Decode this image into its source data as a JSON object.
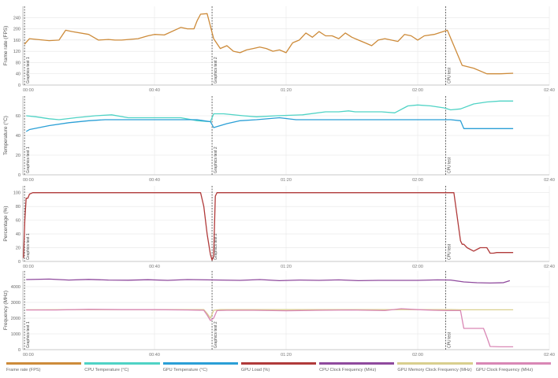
{
  "chart_data": [
    {
      "type": "line",
      "ylabel": "Frame rate (FPS)",
      "ylim": [
        0,
        280
      ],
      "yticks": [
        0,
        40,
        80,
        120,
        160,
        200,
        240
      ],
      "xlim": [
        0,
        160
      ],
      "xticks": [
        "00:00",
        "00:40",
        "01:20",
        "02:00",
        "02:40"
      ],
      "series": [
        {
          "name": "Frame rate (FPS)",
          "color": "#cd8b3a",
          "x": [
            0.5,
            2,
            8,
            11,
            13,
            15,
            20,
            23,
            26,
            28,
            30,
            35,
            38,
            40,
            43,
            48,
            50,
            52,
            53,
            54,
            56,
            58,
            60,
            62,
            64,
            66,
            68,
            70,
            72,
            74,
            76,
            78,
            80,
            82,
            84,
            86,
            88,
            90,
            92,
            94,
            96,
            98,
            100,
            102,
            104,
            106,
            108,
            110,
            112,
            114,
            116,
            118,
            120,
            122,
            125,
            129,
            133.5,
            137,
            141,
            145,
            149
          ],
          "y": [
            145,
            165,
            158,
            160,
            195,
            190,
            180,
            160,
            162,
            160,
            160,
            165,
            175,
            180,
            178,
            205,
            200,
            200,
            230,
            252,
            254,
            165,
            130,
            140,
            120,
            115,
            125,
            130,
            135,
            130,
            120,
            125,
            115,
            150,
            160,
            185,
            170,
            190,
            175,
            175,
            165,
            185,
            170,
            160,
            150,
            140,
            160,
            165,
            160,
            155,
            180,
            175,
            160,
            175,
            180,
            195,
            70,
            60,
            40,
            40,
            42
          ]
        }
      ],
      "markers": [
        "Graphics test 1",
        "Graphics test 2",
        "CPU test"
      ]
    },
    {
      "type": "line",
      "ylabel": "Temperature (°C)",
      "ylim": [
        0,
        80
      ],
      "yticks": [
        0,
        20,
        40,
        60
      ],
      "xlim": [
        0,
        160
      ],
      "xticks": [
        "00:00",
        "00:40",
        "01:20",
        "02:00",
        "02:40"
      ],
      "series": [
        {
          "name": "CPU Temperature (°C)",
          "color": "#4fd3c5",
          "x": [
            1,
            4,
            8,
            11,
            16,
            22,
            27,
            32,
            40,
            48,
            53,
            57,
            58,
            61,
            67,
            71,
            77,
            85,
            92,
            96,
            99,
            101,
            105,
            109,
            113,
            117,
            120,
            124,
            128,
            130,
            133,
            137,
            141,
            145,
            149
          ],
          "y": [
            60,
            59,
            57,
            56,
            58,
            60,
            61,
            58,
            58,
            58,
            55,
            54,
            62,
            62,
            60,
            59,
            60,
            61,
            64,
            64,
            65,
            64,
            64,
            64,
            63,
            70,
            71,
            70,
            68,
            66,
            67,
            72,
            74,
            75,
            75
          ]
        },
        {
          "name": "GPU Temperature (°C)",
          "color": "#2a9fd6",
          "x": [
            1,
            2,
            5,
            8,
            14,
            20,
            25,
            30,
            40,
            48,
            53,
            55,
            57,
            58,
            59,
            62,
            66,
            71,
            78,
            83,
            90,
            100,
            110,
            120,
            130,
            133,
            134,
            136,
            141,
            145,
            149
          ],
          "y": [
            44,
            46,
            48,
            50,
            53,
            55,
            56,
            56,
            56,
            56,
            56,
            55,
            54,
            48,
            49,
            52,
            55,
            56,
            58,
            56,
            56,
            56,
            56,
            56,
            56,
            55,
            47,
            47,
            47,
            47,
            47
          ]
        }
      ],
      "markers": [
        "Graphics test 1",
        "Graphics test 2",
        "CPU test"
      ]
    },
    {
      "type": "line",
      "ylabel": "Percentage (%)",
      "ylim": [
        0,
        110
      ],
      "yticks": [
        0,
        20,
        40,
        60,
        80,
        100
      ],
      "xlim": [
        0,
        160
      ],
      "xticks": [
        "00:00",
        "00:40",
        "01:20",
        "02:00",
        "02:40"
      ],
      "series": [
        {
          "name": "GPU Load (%)",
          "color": "#b03a3a",
          "x": [
            0.2,
            0.6,
            1,
            1.5,
            2,
            3,
            4,
            20,
            40,
            54,
            55,
            56,
            57,
            57.5,
            58,
            58.5,
            59,
            60,
            70,
            100,
            128,
            131,
            133,
            133.5,
            134,
            135,
            137,
            139,
            141,
            142,
            143,
            144,
            145,
            149
          ],
          "y": [
            5,
            60,
            92,
            92,
            98,
            100,
            100,
            100,
            100,
            100,
            80,
            40,
            10,
            2,
            8,
            95,
            100,
            100,
            100,
            100,
            100,
            100,
            30,
            25,
            25,
            20,
            15,
            20,
            20,
            12,
            12,
            13,
            13,
            13
          ]
        }
      ],
      "markers": [
        "Graphics test 1",
        "Graphics test 2",
        "CPU test"
      ]
    },
    {
      "type": "line",
      "ylabel": "Frequency (MHz)",
      "ylim": [
        0,
        5000
      ],
      "yticks": [
        0,
        1000,
        2000,
        3000,
        4000
      ],
      "xlim": [
        0,
        160
      ],
      "xticks": [
        "00:00",
        "00:40",
        "01:20",
        "02:00",
        "02:40"
      ],
      "series": [
        {
          "name": "CPU Clock Frequency (MHz)",
          "color": "#8f4a9d",
          "x": [
            1,
            8,
            14,
            20,
            26,
            32,
            38,
            44,
            50,
            56,
            60,
            66,
            72,
            78,
            84,
            90,
            96,
            102,
            108,
            114,
            120,
            126,
            130,
            134,
            138,
            142,
            146,
            148
          ],
          "y": [
            4450,
            4480,
            4420,
            4460,
            4420,
            4410,
            4440,
            4400,
            4450,
            4430,
            4420,
            4400,
            4450,
            4380,
            4420,
            4400,
            4430,
            4380,
            4400,
            4400,
            4400,
            4430,
            4420,
            4300,
            4250,
            4230,
            4250,
            4380
          ]
        },
        {
          "name": "GPU Memory Clock Frequency (MHz)",
          "color": "#d9cf8e",
          "x": [
            1,
            20,
            40,
            55,
            56,
            57,
            58,
            60,
            80,
            100,
            120,
            130,
            133,
            140,
            149
          ],
          "y": [
            2530,
            2540,
            2540,
            2540,
            2300,
            2000,
            2500,
            2540,
            2540,
            2540,
            2540,
            2540,
            2530,
            2530,
            2530
          ]
        },
        {
          "name": "GPU Clock Frequency (MHz)",
          "color": "#d987b5",
          "x": [
            1,
            10,
            20,
            30,
            40,
            50,
            55,
            56,
            57,
            58,
            59,
            62,
            70,
            80,
            90,
            100,
            110,
            115,
            120,
            125,
            129,
            133,
            134,
            138,
            140,
            141,
            142,
            145,
            149
          ],
          "y": [
            2520,
            2520,
            2560,
            2540,
            2540,
            2520,
            2500,
            2200,
            1850,
            2000,
            2480,
            2500,
            2500,
            2470,
            2500,
            2520,
            2480,
            2600,
            2540,
            2500,
            2480,
            2480,
            1350,
            1350,
            1350,
            800,
            200,
            180,
            180
          ]
        }
      ],
      "markers": [
        "Graphics test 1",
        "Graphics test 2",
        "CPU test"
      ]
    }
  ],
  "markers_x": [
    0.5,
    57.5,
    128.5
  ],
  "legend": [
    {
      "label": "Frame rate (FPS)",
      "color": "#cd8b3a"
    },
    {
      "label": "CPU Temperature (°C)",
      "color": "#4fd3c5"
    },
    {
      "label": "GPU Temperature (°C)",
      "color": "#2a9fd6"
    },
    {
      "label": "GPU Load (%)",
      "color": "#b03a3a"
    },
    {
      "label": "CPU Clock Frequency (MHz)",
      "color": "#8f4a9d"
    },
    {
      "label": "GPU Memory Clock Frequency (MHz)",
      "color": "#d9cf8e"
    },
    {
      "label": "GPU Clock Frequency (MHz)",
      "color": "#d987b5"
    }
  ]
}
